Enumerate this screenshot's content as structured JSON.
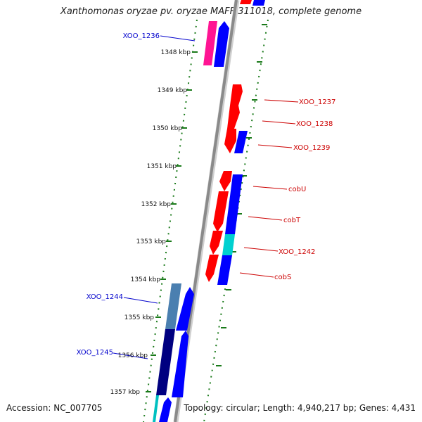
{
  "title": "Xanthomonas oryzae pv. oryzae MAFF 311018, complete genome",
  "footer": {
    "accession": "Accession: NC_007705",
    "stats": "Topology: circular; Length: 4,940,217 bp; Genes: 4,431"
  },
  "colors": {
    "forward_label": "#0000cc",
    "reverse_label": "#cc0000",
    "tick_green": "#1a7a1a",
    "backbone": "#8a8a8a"
  },
  "ticks": [
    "1348 kbp",
    "1349 kbp",
    "1350 kbp",
    "1351 kbp",
    "1352 kbp",
    "1353 kbp",
    "1354 kbp",
    "1355 kbp",
    "1356 kbp",
    "1357 kbp"
  ],
  "gene_labels": {
    "left": [
      "XOO_1236",
      "XOO_1244",
      "XOO_1245"
    ],
    "right": [
      "XOO_1237",
      "XOO_1238",
      "XOO_1239",
      "cobU",
      "cobT",
      "XOO_1242",
      "cobS"
    ]
  }
}
